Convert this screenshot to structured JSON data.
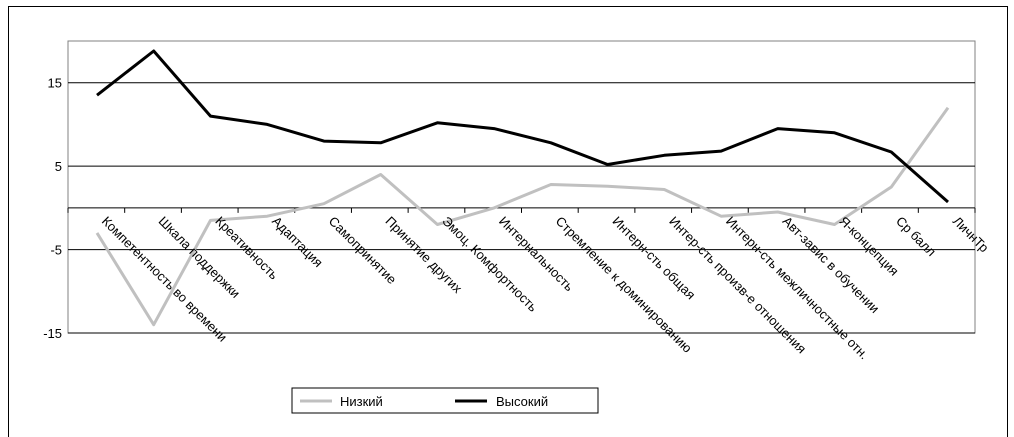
{
  "chart_data": {
    "type": "line",
    "title": "",
    "xlabel": "",
    "ylabel": "",
    "ylim": [
      -15,
      20
    ],
    "yticks": [
      -15,
      -5,
      5,
      15
    ],
    "grid": "horizontal",
    "legend_position": "bottom",
    "categories": [
      "Компетентность во времени",
      "Шкала поддержки",
      "Креативность",
      "Адаптация",
      "Самопринятие",
      "Принятие других",
      "Эмоц. Комфортность",
      "Интернальность",
      "Стремление к доминированию",
      "Интерн-сть общая",
      "Интер-сть произв-е отношения",
      "Интерн-сть межличностные отн.",
      "Авт-завис в обучении",
      "Я-концепция",
      "Ср балл",
      "ЛичнТр"
    ],
    "series": [
      {
        "name": "Низкий",
        "color": "#c0c0c0",
        "values": [
          -3,
          -14,
          -1.5,
          -1,
          0.5,
          4,
          -2,
          0,
          2.8,
          2.6,
          2.2,
          -1,
          -0.5,
          -2,
          2.5,
          12
        ]
      },
      {
        "name": "Высокий",
        "color": "#000000",
        "values": [
          13.5,
          18.8,
          11,
          10,
          8,
          7.8,
          10.2,
          9.5,
          7.8,
          5.2,
          6.3,
          6.8,
          9.5,
          9,
          6.7,
          0.7
        ]
      }
    ]
  }
}
